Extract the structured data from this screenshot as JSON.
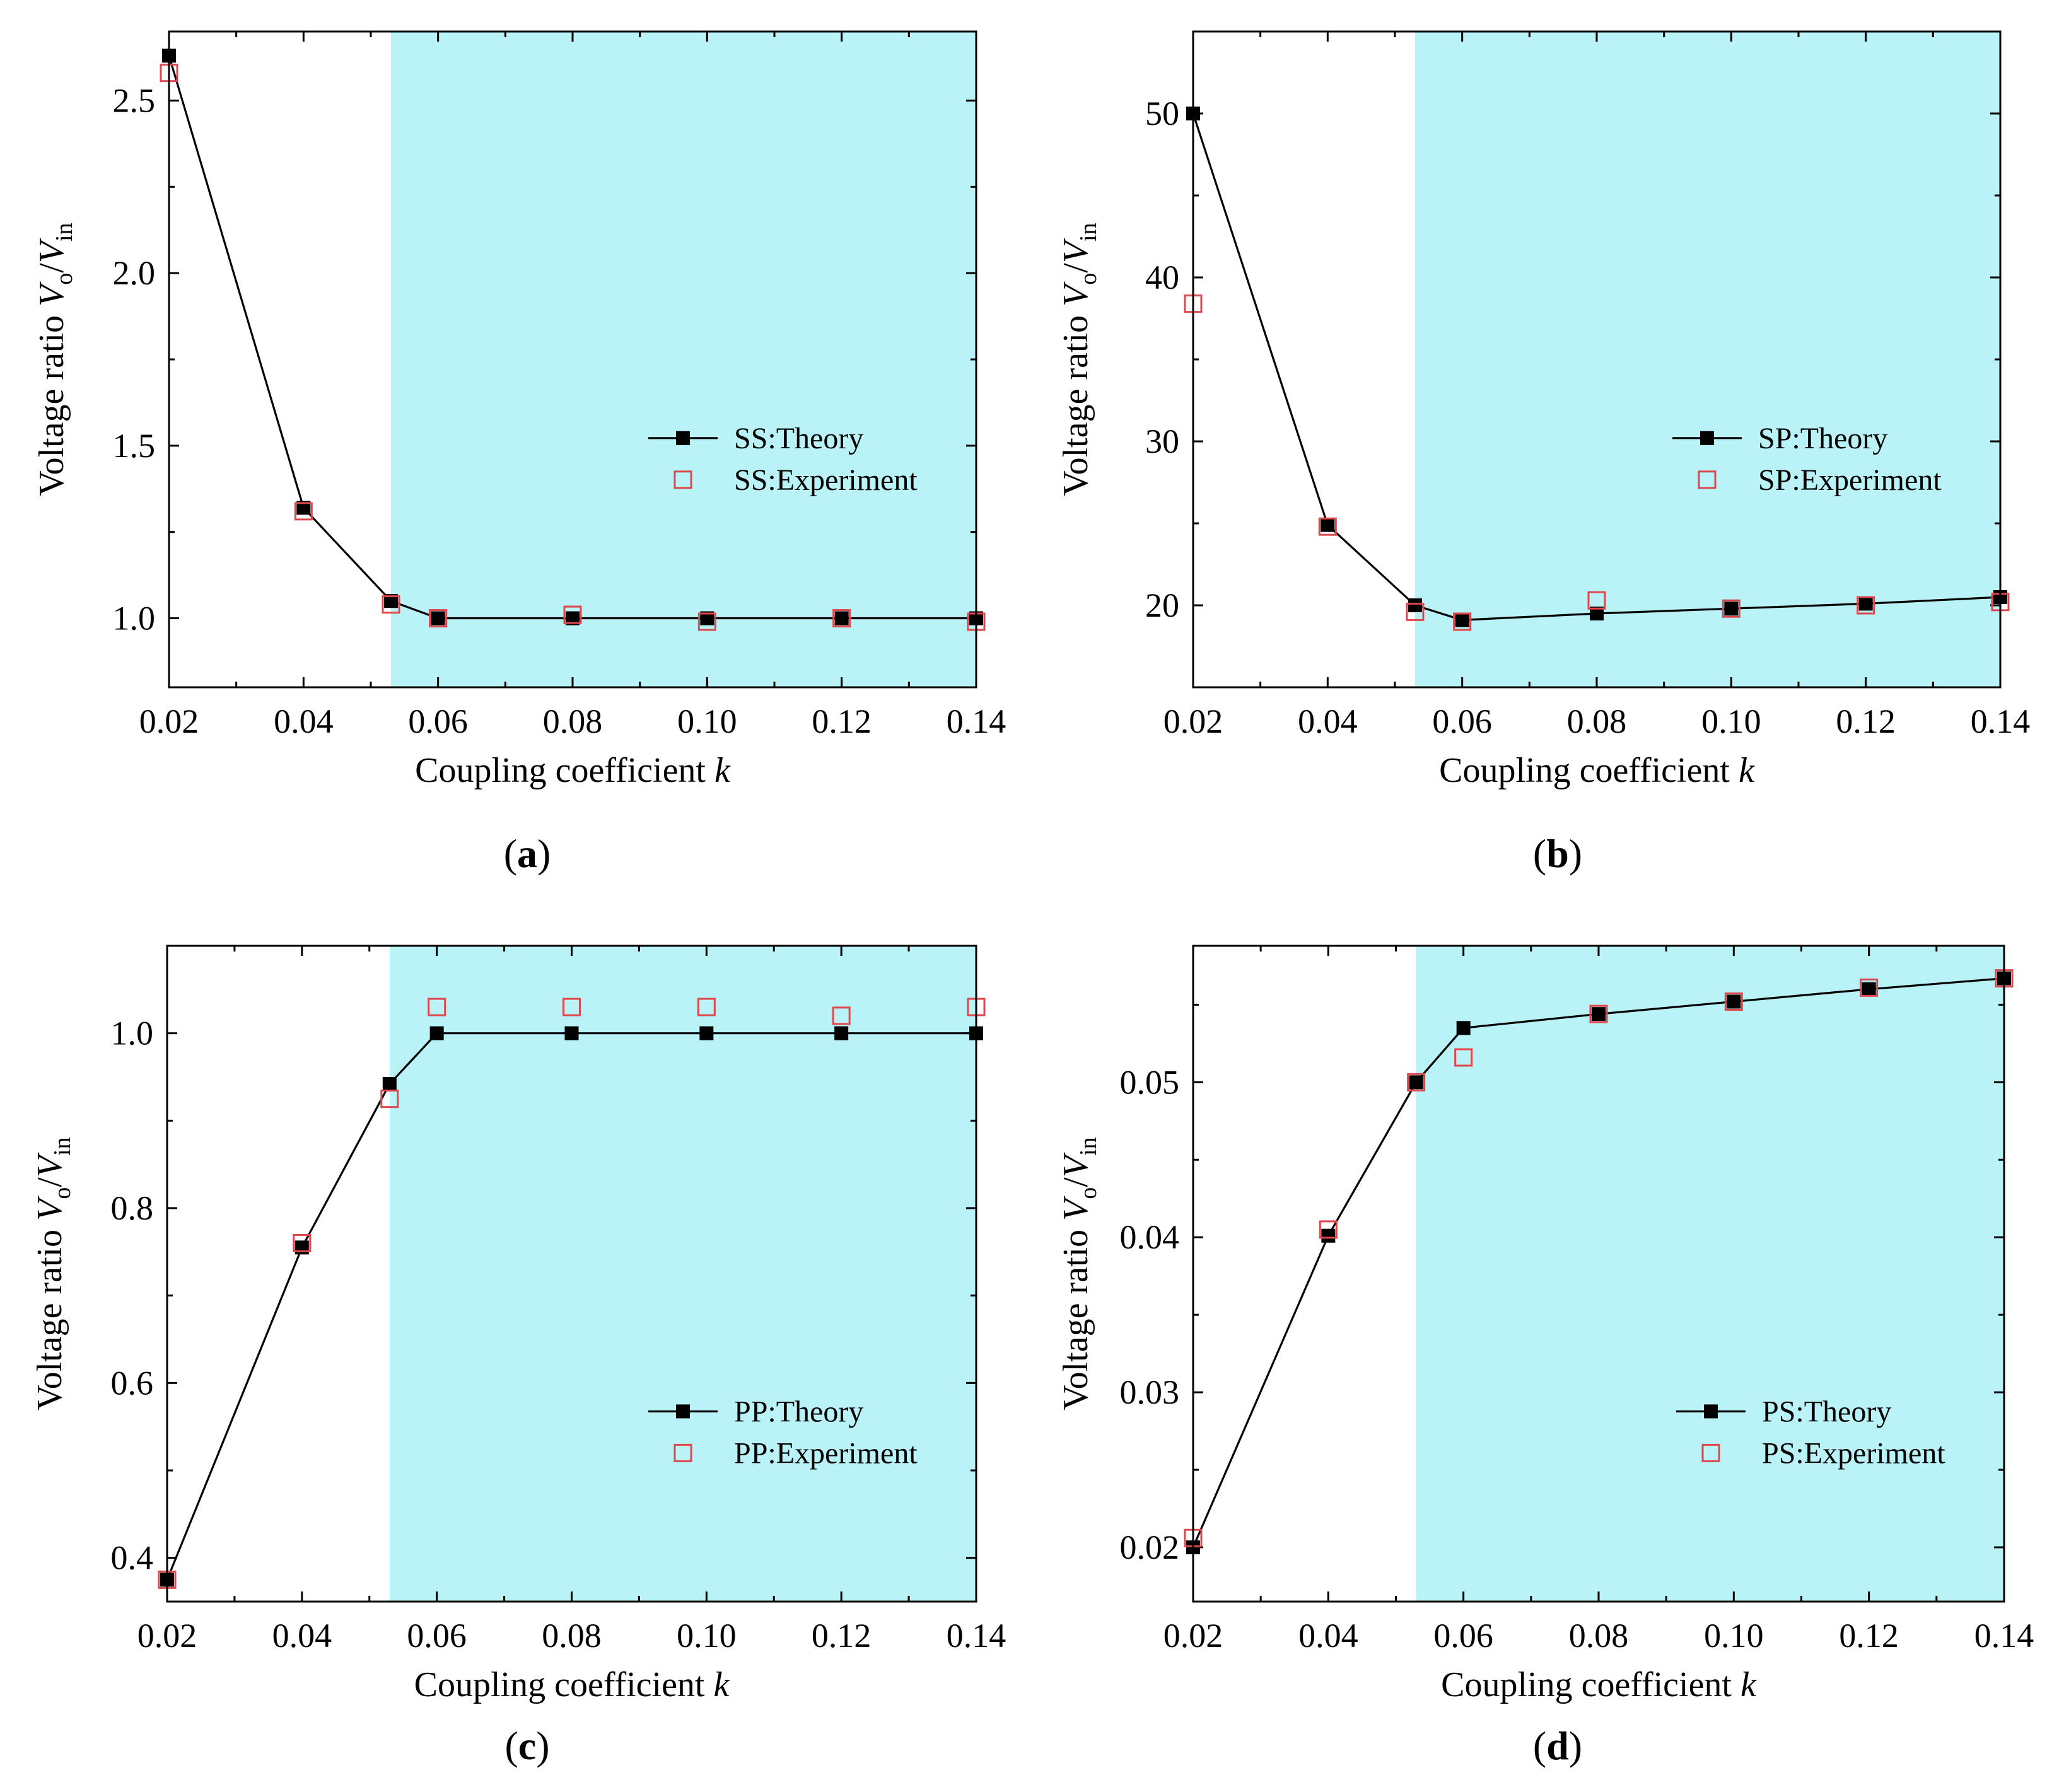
{
  "colors": {
    "shade": "#b9f3f7",
    "theory": "#000000",
    "experiment": "#e0474c"
  },
  "chart_data": [
    {
      "type": "line",
      "panel_label": "(a)",
      "xlabel": "Coupling coefficient k",
      "ylabel": "Voltage ratio Vo/Vin",
      "xlim": [
        0.02,
        0.14
      ],
      "ylim": [
        0.8,
        2.7
      ],
      "x_ticks": [
        0.02,
        0.04,
        0.06,
        0.08,
        0.1,
        0.12,
        0.14
      ],
      "x_tick_labels": [
        "0.02",
        "0.04",
        "0.06",
        "0.08",
        "0.10",
        "0.12",
        "0.14"
      ],
      "y_ticks": [
        1.0,
        1.5,
        2.0,
        2.5
      ],
      "y_tick_labels": [
        "1.0",
        "1.5",
        "2.0",
        "2.5"
      ],
      "shaded_region": {
        "x_from": 0.053,
        "x_to": 0.14
      },
      "legend_position": "center-right",
      "series": [
        {
          "name": "SS:Theory",
          "style": "line-filled-square",
          "x": [
            0.02,
            0.04,
            0.053,
            0.06,
            0.08,
            0.1,
            0.12,
            0.14
          ],
          "y": [
            2.63,
            1.32,
            1.05,
            1.0,
            1.0,
            1.0,
            1.0,
            1.0
          ]
        },
        {
          "name": "SS:Experiment",
          "style": "open-square",
          "x": [
            0.02,
            0.04,
            0.053,
            0.06,
            0.08,
            0.1,
            0.12,
            0.14
          ],
          "y": [
            2.58,
            1.31,
            1.04,
            1.0,
            1.01,
            0.99,
            1.0,
            0.99
          ]
        }
      ]
    },
    {
      "type": "line",
      "panel_label": "(b)",
      "xlabel": "Coupling coefficient k",
      "ylabel": "Voltage ratio Vo/Vin",
      "xlim": [
        0.02,
        0.14
      ],
      "ylim": [
        15,
        55
      ],
      "x_ticks": [
        0.02,
        0.04,
        0.06,
        0.08,
        0.1,
        0.12,
        0.14
      ],
      "x_tick_labels": [
        "0.02",
        "0.04",
        "0.06",
        "0.08",
        "0.10",
        "0.12",
        "0.14"
      ],
      "y_ticks": [
        20,
        30,
        40,
        50
      ],
      "y_tick_labels": [
        "20",
        "30",
        "40",
        "50"
      ],
      "shaded_region": {
        "x_from": 0.053,
        "x_to": 0.14
      },
      "legend_position": "center-right",
      "series": [
        {
          "name": "SP:Theory",
          "style": "line-filled-square",
          "x": [
            0.02,
            0.04,
            0.053,
            0.06,
            0.08,
            0.1,
            0.12,
            0.14
          ],
          "y": [
            50.0,
            24.9,
            20.0,
            19.1,
            19.5,
            19.8,
            20.1,
            20.5
          ]
        },
        {
          "name": "SP:Experiment",
          "style": "open-square",
          "x": [
            0.02,
            0.04,
            0.053,
            0.06,
            0.08,
            0.1,
            0.12,
            0.14
          ],
          "y": [
            38.4,
            24.8,
            19.6,
            19.0,
            20.3,
            19.8,
            20.0,
            20.2
          ]
        }
      ]
    },
    {
      "type": "line",
      "panel_label": "(c)",
      "xlabel": "Coupling coefficient k",
      "ylabel": "Voltage ratio Vo/Vin",
      "xlim": [
        0.02,
        0.14
      ],
      "ylim": [
        0.35,
        1.1
      ],
      "x_ticks": [
        0.02,
        0.04,
        0.06,
        0.08,
        0.1,
        0.12,
        0.14
      ],
      "x_tick_labels": [
        "0.02",
        "0.04",
        "0.06",
        "0.08",
        "0.10",
        "0.12",
        "0.14"
      ],
      "y_ticks": [
        0.4,
        0.6,
        0.8,
        1.0
      ],
      "y_tick_labels": [
        "0.4",
        "0.6",
        "0.8",
        "1.0"
      ],
      "shaded_region": {
        "x_from": 0.053,
        "x_to": 0.14
      },
      "legend_position": "lower-right",
      "series": [
        {
          "name": "PP:Theory",
          "style": "line-filled-square",
          "x": [
            0.02,
            0.04,
            0.053,
            0.06,
            0.08,
            0.1,
            0.12,
            0.14
          ],
          "y": [
            0.375,
            0.755,
            0.942,
            1.0,
            1.0,
            1.0,
            1.0,
            1.0
          ]
        },
        {
          "name": "PP:Experiment",
          "style": "open-square",
          "x": [
            0.02,
            0.04,
            0.053,
            0.06,
            0.08,
            0.1,
            0.12,
            0.14
          ],
          "y": [
            0.375,
            0.76,
            0.925,
            1.03,
            1.03,
            1.03,
            1.02,
            1.03
          ]
        }
      ]
    },
    {
      "type": "line",
      "panel_label": "(d)",
      "xlabel": "Coupling coefficient k",
      "ylabel": "Voltage ratio Vo/Vin",
      "xlim": [
        0.02,
        0.14
      ],
      "ylim": [
        0.0165,
        0.0588
      ],
      "x_ticks": [
        0.02,
        0.04,
        0.06,
        0.08,
        0.1,
        0.12,
        0.14
      ],
      "x_tick_labels": [
        "0.02",
        "0.04",
        "0.06",
        "0.08",
        "0.10",
        "0.12",
        "0.14"
      ],
      "y_ticks": [
        0.02,
        0.03,
        0.04,
        0.05
      ],
      "y_tick_labels": [
        "0.02",
        "0.03",
        "0.04",
        "0.05"
      ],
      "shaded_region": {
        "x_from": 0.053,
        "x_to": 0.14
      },
      "legend_position": "lower-right",
      "series": [
        {
          "name": "PS:Theory",
          "style": "line-filled-square",
          "x": [
            0.02,
            0.04,
            0.053,
            0.06,
            0.08,
            0.1,
            0.12,
            0.14
          ],
          "y": [
            0.02,
            0.0401,
            0.05,
            0.0535,
            0.0544,
            0.0552,
            0.056,
            0.0567
          ]
        },
        {
          "name": "PS:Experiment",
          "style": "open-square",
          "x": [
            0.02,
            0.04,
            0.053,
            0.06,
            0.08,
            0.1,
            0.12,
            0.14
          ],
          "y": [
            0.0206,
            0.0405,
            0.05,
            0.0516,
            0.0544,
            0.0552,
            0.0561,
            0.0567
          ]
        }
      ]
    }
  ]
}
